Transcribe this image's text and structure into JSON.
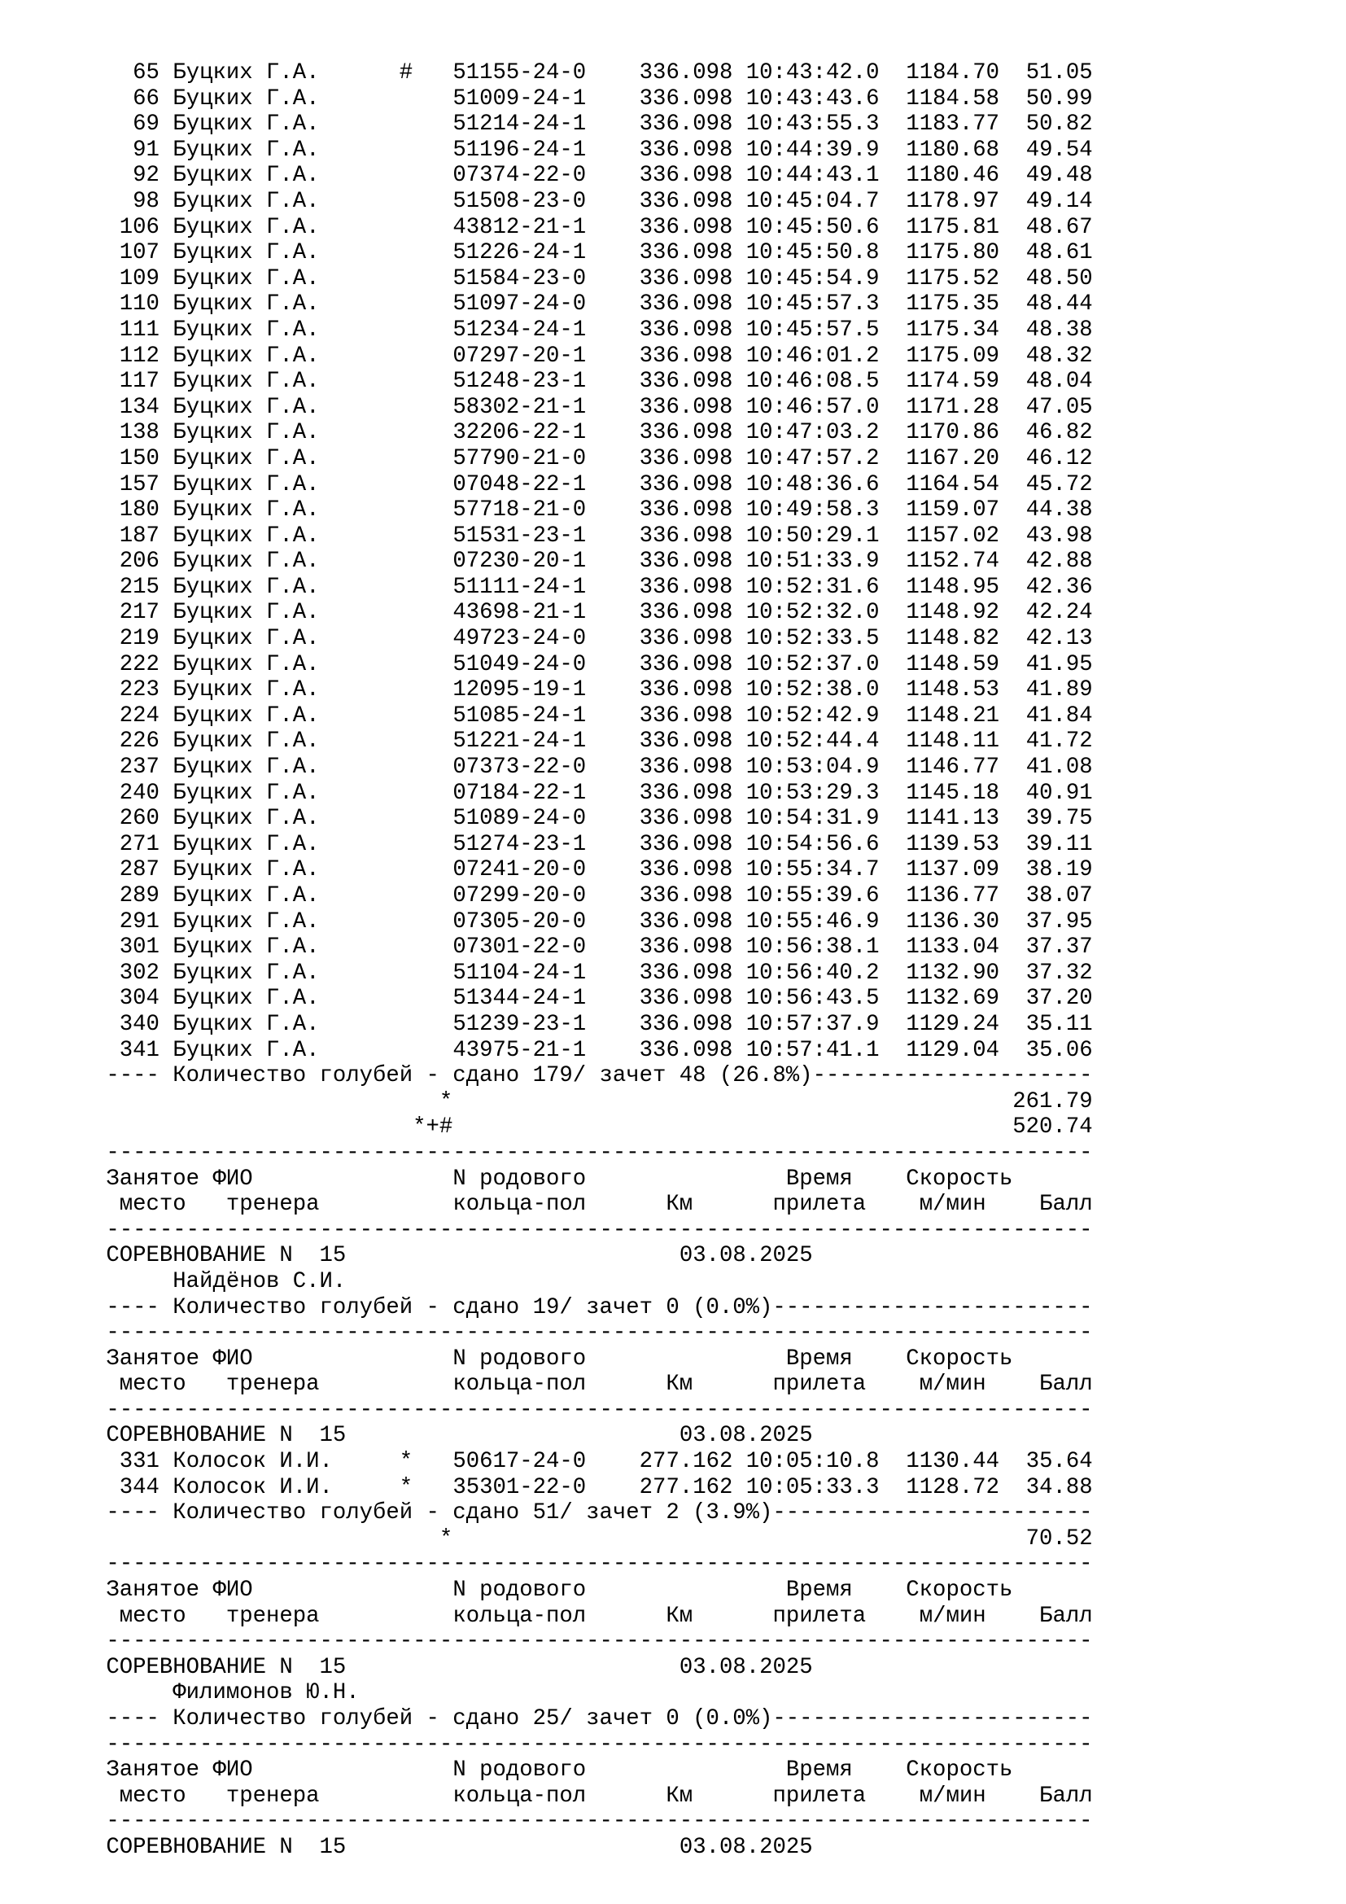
{
  "page": {
    "background": "#ffffff",
    "text_color": "#000000",
    "kind": "pigeon-racing-results-report"
  },
  "labels": {
    "header_line1": {
      "place_top": "Занятое",
      "fio_top": "ФИО",
      "ring_top": "N родового",
      "time_top": "Время",
      "speed_top": "Скорость"
    },
    "header_line2": {
      "place_bottom": "место",
      "fio_bottom": "тренера",
      "ring_bottom": "кольца-пол",
      "km": "Км",
      "time_bottom": "прилета",
      "speed_bottom": "м/мин",
      "score": "Балл"
    },
    "competition_word": "СОРЕВНОВАНИЕ",
    "competition_n": "N",
    "count_words": {
      "pigeons": "Количество голубей",
      "handed": "сдано",
      "counted": "зачет"
    }
  },
  "main_block": {
    "trainer": "Буцких Г.А.",
    "km": "336.098",
    "rows": [
      {
        "place": "65",
        "trainer": "Буцких Г.А.",
        "marker": "#",
        "ring": "51155-24-0",
        "km": "336.098",
        "time": "10:43:42.0",
        "speed": "1184.70",
        "score": "51.05"
      },
      {
        "place": "66",
        "trainer": "Буцких Г.А.",
        "marker": "",
        "ring": "51009-24-1",
        "km": "336.098",
        "time": "10:43:43.6",
        "speed": "1184.58",
        "score": "50.99"
      },
      {
        "place": "69",
        "trainer": "Буцких Г.А.",
        "marker": "",
        "ring": "51214-24-1",
        "km": "336.098",
        "time": "10:43:55.3",
        "speed": "1183.77",
        "score": "50.82"
      },
      {
        "place": "91",
        "trainer": "Буцких Г.А.",
        "marker": "",
        "ring": "51196-24-1",
        "km": "336.098",
        "time": "10:44:39.9",
        "speed": "1180.68",
        "score": "49.54"
      },
      {
        "place": "92",
        "trainer": "Буцких Г.А.",
        "marker": "",
        "ring": "07374-22-0",
        "km": "336.098",
        "time": "10:44:43.1",
        "speed": "1180.46",
        "score": "49.48"
      },
      {
        "place": "98",
        "trainer": "Буцких Г.А.",
        "marker": "",
        "ring": "51508-23-0",
        "km": "336.098",
        "time": "10:45:04.7",
        "speed": "1178.97",
        "score": "49.14"
      },
      {
        "place": "106",
        "trainer": "Буцких Г.А.",
        "marker": "",
        "ring": "43812-21-1",
        "km": "336.098",
        "time": "10:45:50.6",
        "speed": "1175.81",
        "score": "48.67"
      },
      {
        "place": "107",
        "trainer": "Буцких Г.А.",
        "marker": "",
        "ring": "51226-24-1",
        "km": "336.098",
        "time": "10:45:50.8",
        "speed": "1175.80",
        "score": "48.61"
      },
      {
        "place": "109",
        "trainer": "Буцких Г.А.",
        "marker": "",
        "ring": "51584-23-0",
        "km": "336.098",
        "time": "10:45:54.9",
        "speed": "1175.52",
        "score": "48.50"
      },
      {
        "place": "110",
        "trainer": "Буцких Г.А.",
        "marker": "",
        "ring": "51097-24-0",
        "km": "336.098",
        "time": "10:45:57.3",
        "speed": "1175.35",
        "score": "48.44"
      },
      {
        "place": "111",
        "trainer": "Буцких Г.А.",
        "marker": "",
        "ring": "51234-24-1",
        "km": "336.098",
        "time": "10:45:57.5",
        "speed": "1175.34",
        "score": "48.38"
      },
      {
        "place": "112",
        "trainer": "Буцких Г.А.",
        "marker": "",
        "ring": "07297-20-1",
        "km": "336.098",
        "time": "10:46:01.2",
        "speed": "1175.09",
        "score": "48.32"
      },
      {
        "place": "117",
        "trainer": "Буцких Г.А.",
        "marker": "",
        "ring": "51248-23-1",
        "km": "336.098",
        "time": "10:46:08.5",
        "speed": "1174.59",
        "score": "48.04"
      },
      {
        "place": "134",
        "trainer": "Буцких Г.А.",
        "marker": "",
        "ring": "58302-21-1",
        "km": "336.098",
        "time": "10:46:57.0",
        "speed": "1171.28",
        "score": "47.05"
      },
      {
        "place": "138",
        "trainer": "Буцких Г.А.",
        "marker": "",
        "ring": "32206-22-1",
        "km": "336.098",
        "time": "10:47:03.2",
        "speed": "1170.86",
        "score": "46.82"
      },
      {
        "place": "150",
        "trainer": "Буцких Г.А.",
        "marker": "",
        "ring": "57790-21-0",
        "km": "336.098",
        "time": "10:47:57.2",
        "speed": "1167.20",
        "score": "46.12"
      },
      {
        "place": "157",
        "trainer": "Буцких Г.А.",
        "marker": "",
        "ring": "07048-22-1",
        "km": "336.098",
        "time": "10:48:36.6",
        "speed": "1164.54",
        "score": "45.72"
      },
      {
        "place": "180",
        "trainer": "Буцких Г.А.",
        "marker": "",
        "ring": "57718-21-0",
        "km": "336.098",
        "time": "10:49:58.3",
        "speed": "1159.07",
        "score": "44.38"
      },
      {
        "place": "187",
        "trainer": "Буцких Г.А.",
        "marker": "",
        "ring": "51531-23-1",
        "km": "336.098",
        "time": "10:50:29.1",
        "speed": "1157.02",
        "score": "43.98"
      },
      {
        "place": "206",
        "trainer": "Буцких Г.А.",
        "marker": "",
        "ring": "07230-20-1",
        "km": "336.098",
        "time": "10:51:33.9",
        "speed": "1152.74",
        "score": "42.88"
      },
      {
        "place": "215",
        "trainer": "Буцких Г.А.",
        "marker": "",
        "ring": "51111-24-1",
        "km": "336.098",
        "time": "10:52:31.6",
        "speed": "1148.95",
        "score": "42.36"
      },
      {
        "place": "217",
        "trainer": "Буцких Г.А.",
        "marker": "",
        "ring": "43698-21-1",
        "km": "336.098",
        "time": "10:52:32.0",
        "speed": "1148.92",
        "score": "42.24"
      },
      {
        "place": "219",
        "trainer": "Буцких Г.А.",
        "marker": "",
        "ring": "49723-24-0",
        "km": "336.098",
        "time": "10:52:33.5",
        "speed": "1148.82",
        "score": "42.13"
      },
      {
        "place": "222",
        "trainer": "Буцких Г.А.",
        "marker": "",
        "ring": "51049-24-0",
        "km": "336.098",
        "time": "10:52:37.0",
        "speed": "1148.59",
        "score": "41.95"
      },
      {
        "place": "223",
        "trainer": "Буцких Г.А.",
        "marker": "",
        "ring": "12095-19-1",
        "km": "336.098",
        "time": "10:52:38.0",
        "speed": "1148.53",
        "score": "41.89"
      },
      {
        "place": "224",
        "trainer": "Буцких Г.А.",
        "marker": "",
        "ring": "51085-24-1",
        "km": "336.098",
        "time": "10:52:42.9",
        "speed": "1148.21",
        "score": "41.84"
      },
      {
        "place": "226",
        "trainer": "Буцких Г.А.",
        "marker": "",
        "ring": "51221-24-1",
        "km": "336.098",
        "time": "10:52:44.4",
        "speed": "1148.11",
        "score": "41.72"
      },
      {
        "place": "237",
        "trainer": "Буцких Г.А.",
        "marker": "",
        "ring": "07373-22-0",
        "km": "336.098",
        "time": "10:53:04.9",
        "speed": "1146.77",
        "score": "41.08"
      },
      {
        "place": "240",
        "trainer": "Буцких Г.А.",
        "marker": "",
        "ring": "07184-22-1",
        "km": "336.098",
        "time": "10:53:29.3",
        "speed": "1145.18",
        "score": "40.91"
      },
      {
        "place": "260",
        "trainer": "Буцких Г.А.",
        "marker": "",
        "ring": "51089-24-0",
        "km": "336.098",
        "time": "10:54:31.9",
        "speed": "1141.13",
        "score": "39.75"
      },
      {
        "place": "271",
        "trainer": "Буцких Г.А.",
        "marker": "",
        "ring": "51274-23-1",
        "km": "336.098",
        "time": "10:54:56.6",
        "speed": "1139.53",
        "score": "39.11"
      },
      {
        "place": "287",
        "trainer": "Буцких Г.А.",
        "marker": "",
        "ring": "07241-20-0",
        "km": "336.098",
        "time": "10:55:34.7",
        "speed": "1137.09",
        "score": "38.19"
      },
      {
        "place": "289",
        "trainer": "Буцких Г.А.",
        "marker": "",
        "ring": "07299-20-0",
        "km": "336.098",
        "time": "10:55:39.6",
        "speed": "1136.77",
        "score": "38.07"
      },
      {
        "place": "291",
        "trainer": "Буцких Г.А.",
        "marker": "",
        "ring": "07305-20-0",
        "km": "336.098",
        "time": "10:55:46.9",
        "speed": "1136.30",
        "score": "37.95"
      },
      {
        "place": "301",
        "trainer": "Буцких Г.А.",
        "marker": "",
        "ring": "07301-22-0",
        "km": "336.098",
        "time": "10:56:38.1",
        "speed": "1133.04",
        "score": "37.37"
      },
      {
        "place": "302",
        "trainer": "Буцких Г.А.",
        "marker": "",
        "ring": "51104-24-1",
        "km": "336.098",
        "time": "10:56:40.2",
        "speed": "1132.90",
        "score": "37.32"
      },
      {
        "place": "304",
        "trainer": "Буцких Г.А.",
        "marker": "",
        "ring": "51344-24-1",
        "km": "336.098",
        "time": "10:56:43.5",
        "speed": "1132.69",
        "score": "37.20"
      },
      {
        "place": "340",
        "trainer": "Буцких Г.А.",
        "marker": "",
        "ring": "51239-23-1",
        "km": "336.098",
        "time": "10:57:37.9",
        "speed": "1129.24",
        "score": "35.11"
      },
      {
        "place": "341",
        "trainer": "Буцких Г.А.",
        "marker": "",
        "ring": "43975-21-1",
        "km": "336.098",
        "time": "10:57:41.1",
        "speed": "1129.04",
        "score": "35.06"
      }
    ],
    "count": {
      "handed": "179",
      "counted": "48",
      "pct": "26.8"
    },
    "totals": [
      {
        "marker": "*",
        "value": "261.79"
      },
      {
        "marker": "*+#",
        "value": "520.74"
      }
    ]
  },
  "sections": [
    {
      "competition_number": "15",
      "date": "03.08.2025",
      "trainer_line": "Найдёнов С.И.",
      "rows": [],
      "count": {
        "handed": "19",
        "counted": "0",
        "pct": "0.0"
      },
      "totals": []
    },
    {
      "competition_number": "15",
      "date": "03.08.2025",
      "trainer_line": null,
      "rows": [
        {
          "place": "331",
          "trainer": "Колосок И.И.",
          "marker": "*",
          "ring": "50617-24-0",
          "km": "277.162",
          "time": "10:05:10.8",
          "speed": "1130.44",
          "score": "35.64"
        },
        {
          "place": "344",
          "trainer": "Колосок И.И.",
          "marker": "*",
          "ring": "35301-22-0",
          "km": "277.162",
          "time": "10:05:33.3",
          "speed": "1128.72",
          "score": "34.88"
        }
      ],
      "count": {
        "handed": "51",
        "counted": "2",
        "pct": "3.9"
      },
      "totals": [
        {
          "marker": "*",
          "value": "70.52"
        }
      ]
    },
    {
      "competition_number": "15",
      "date": "03.08.2025",
      "trainer_line": "Филимонов Ю.Н.",
      "rows": [],
      "count": {
        "handed": "25",
        "counted": "0",
        "pct": "0.0"
      },
      "totals": []
    },
    {
      "competition_number": "15",
      "date": "03.08.2025",
      "trainer_line": null,
      "rows": [],
      "count": null,
      "totals": []
    }
  ]
}
